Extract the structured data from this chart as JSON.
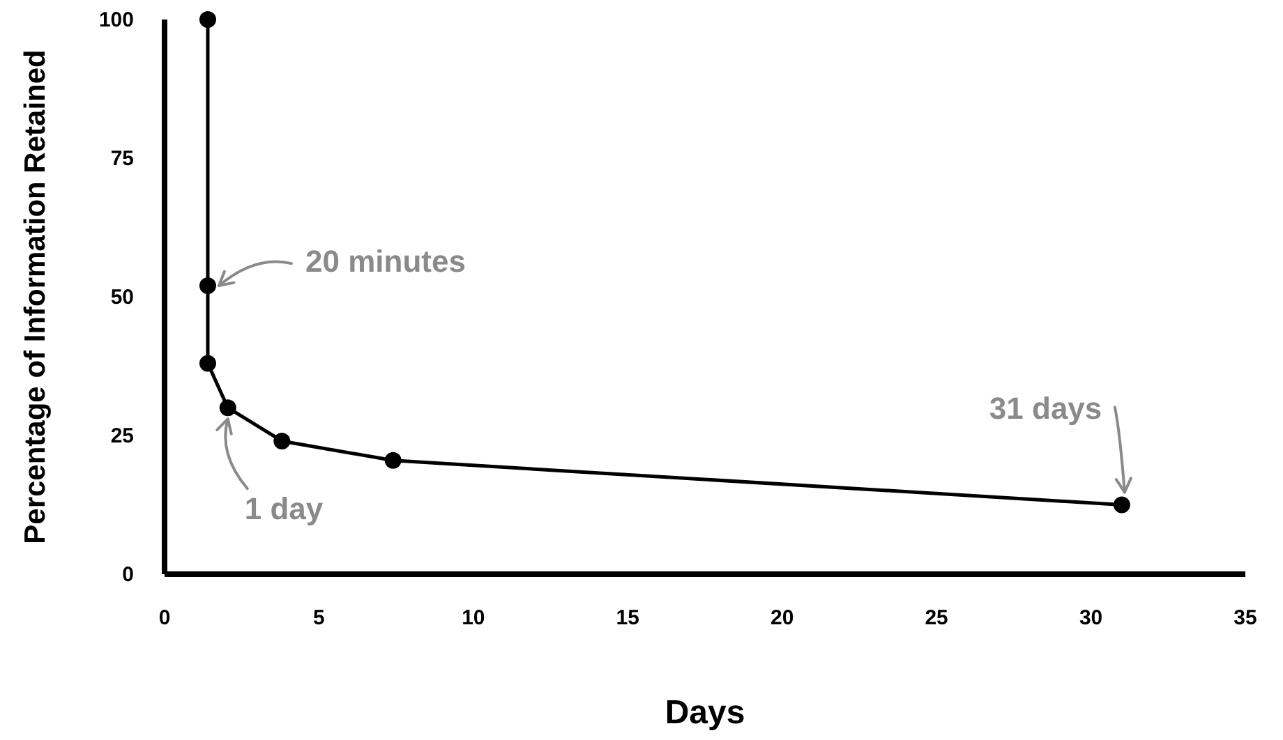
{
  "chart_data": {
    "type": "line",
    "xlabel": "Days",
    "ylabel": "Percentage of Information Retained",
    "x": [
      1.4,
      1.4,
      1.4,
      2.05,
      3.8,
      7.4,
      31
    ],
    "values": [
      100,
      52,
      38,
      30,
      24,
      20.5,
      12.5
    ],
    "color": "#000000",
    "marker": "circle",
    "line_style": "solid",
    "xlim": [
      0,
      35
    ],
    "xticks": [
      0,
      5,
      10,
      15,
      20,
      25,
      30,
      35
    ],
    "ylim": [
      0,
      100
    ],
    "yticks": [
      0,
      25,
      50,
      75,
      100
    ],
    "grid": false,
    "annotations": [
      {
        "text": "20 minutes",
        "x": 1.4,
        "y": 52
      },
      {
        "text": "1 day",
        "x": 2.05,
        "y": 30
      },
      {
        "text": "31 days",
        "x": 31,
        "y": 12.5
      }
    ]
  }
}
